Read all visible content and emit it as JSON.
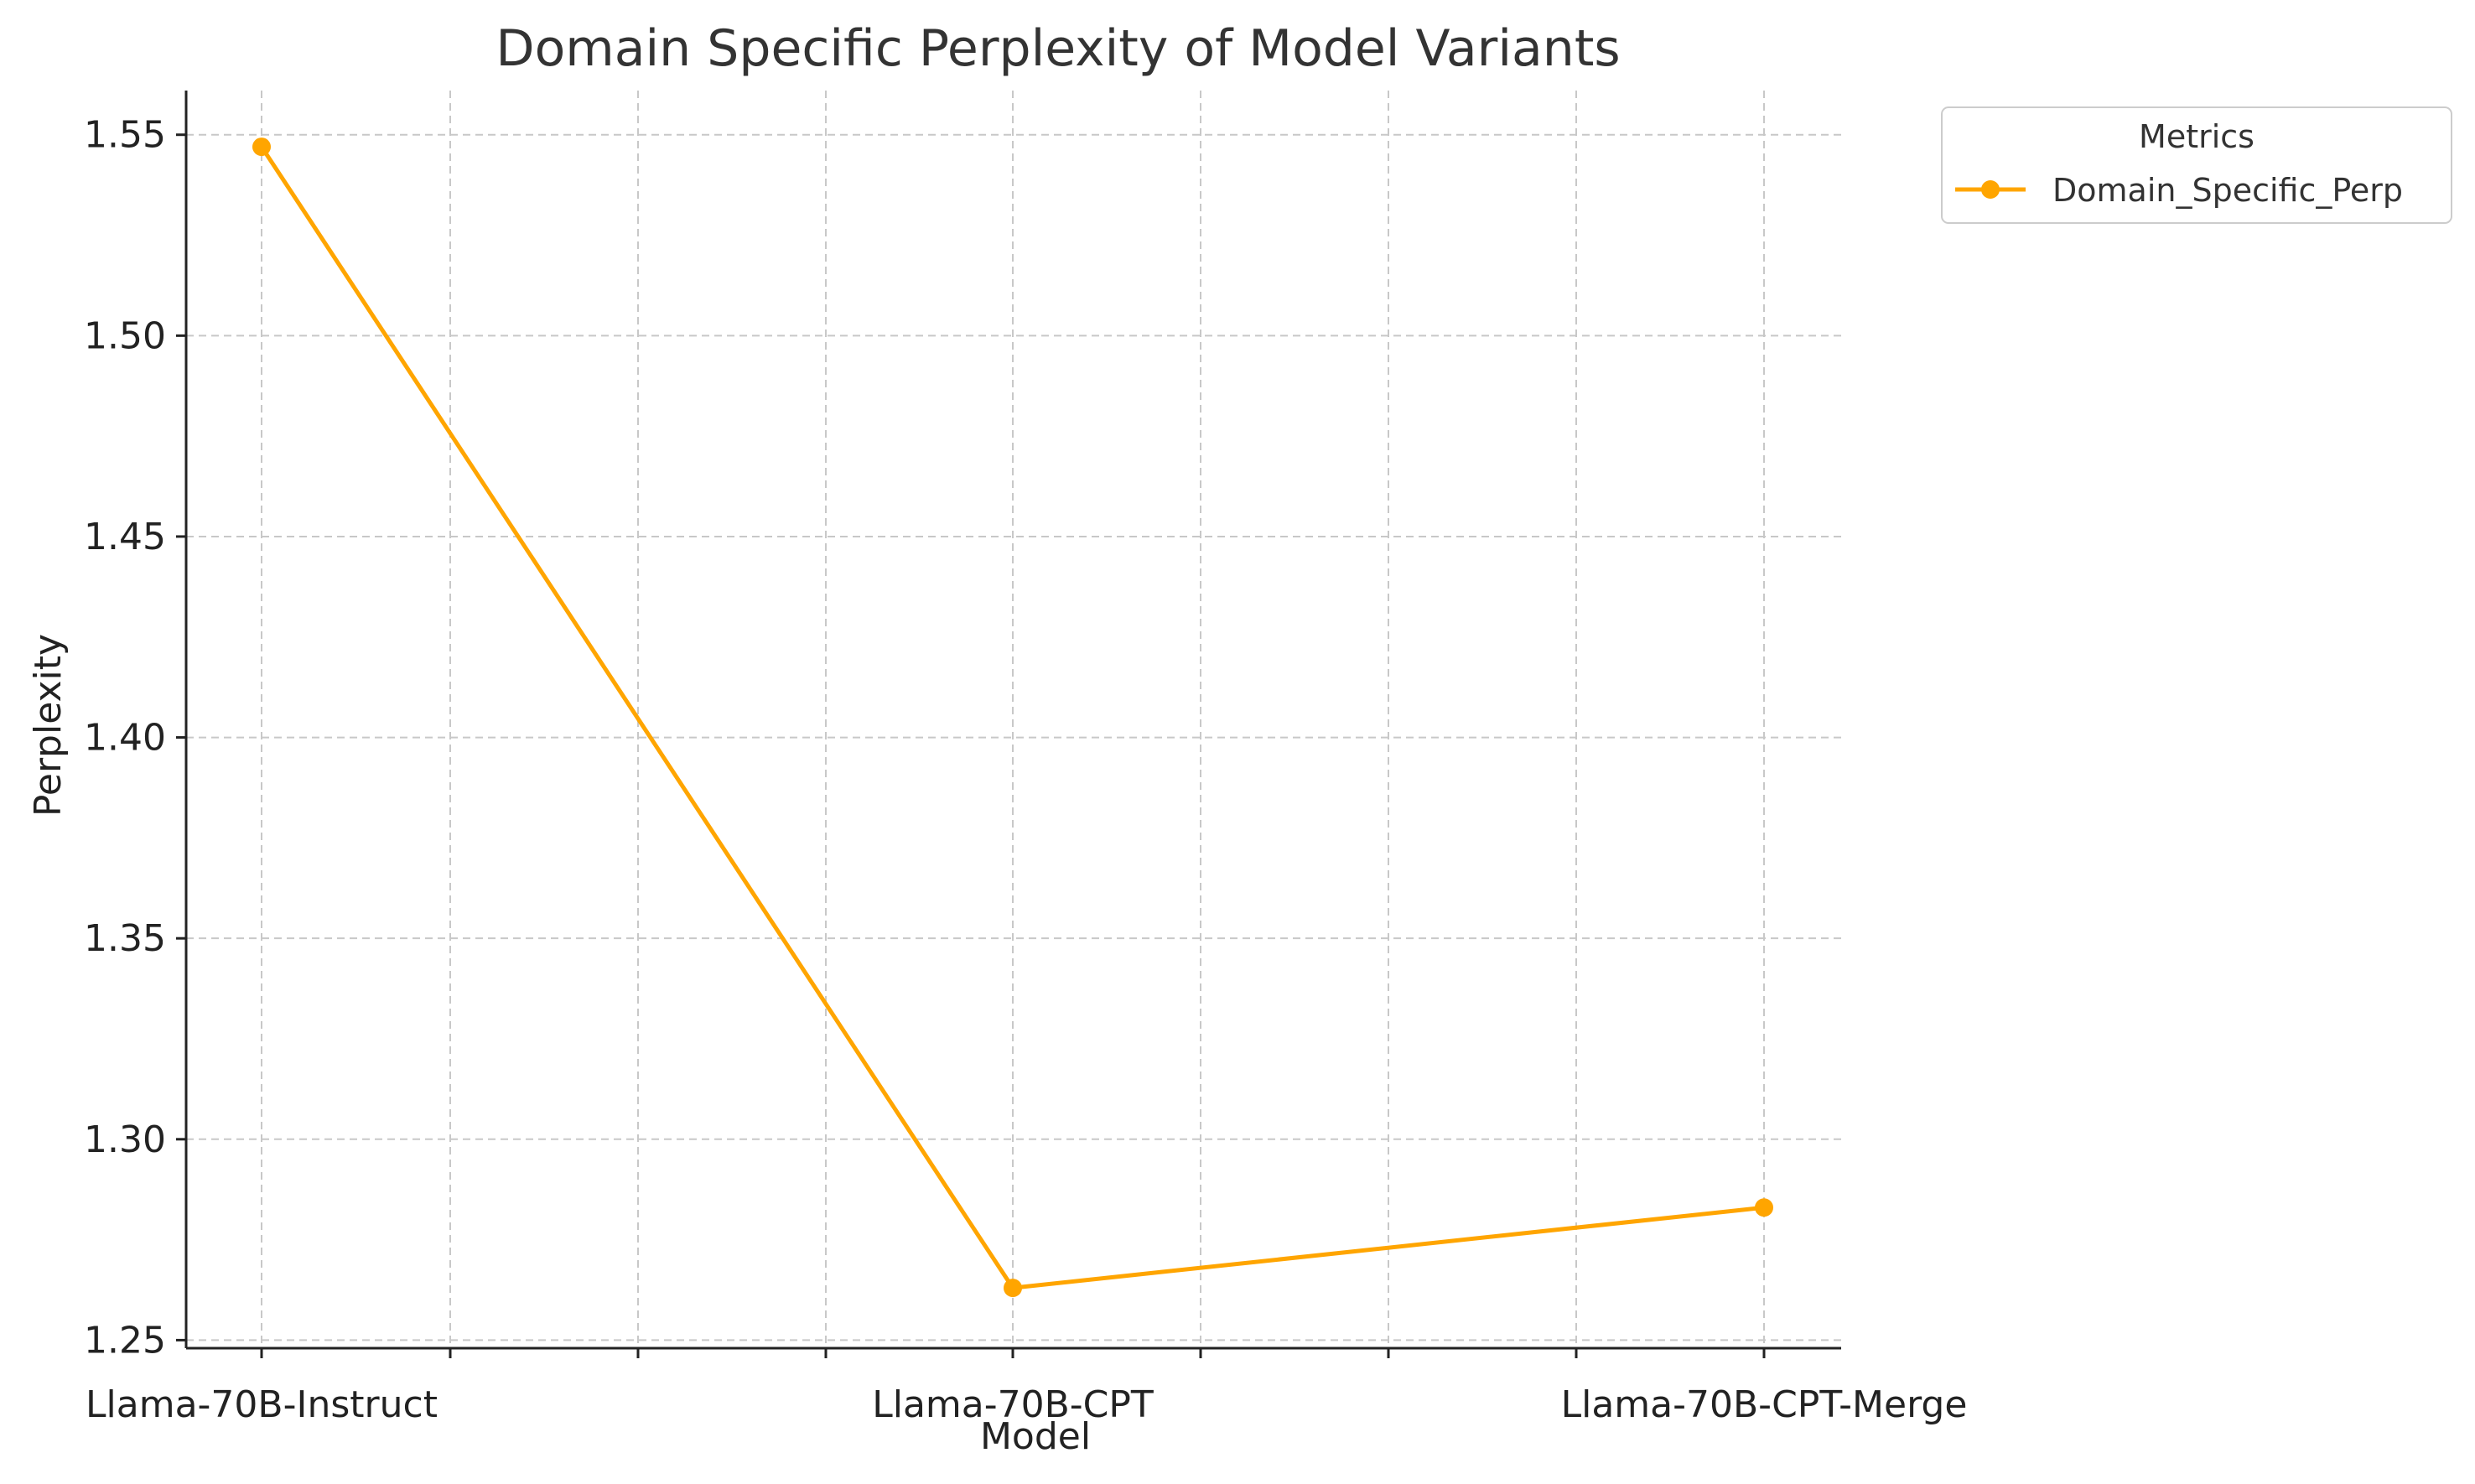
{
  "chart_data": {
    "type": "line",
    "title": "Domain Specific Perplexity of Model Variants",
    "xlabel": "Model",
    "ylabel": "Perplexity",
    "categories": [
      "Llama-70B-Instruct",
      "Llama-70B-CPT",
      "Llama-70B-CPT-Merge"
    ],
    "series": [
      {
        "name": "Domain_Specific_Perp",
        "values": [
          1.547,
          1.263,
          1.283
        ],
        "color": "#FFA500"
      }
    ],
    "ylim": [
      1.248,
      1.561
    ],
    "yticks": [
      "1.25",
      "1.30",
      "1.35",
      "1.40",
      "1.45",
      "1.50",
      "1.55"
    ],
    "grid": true,
    "grid_style": "dashed",
    "legend": {
      "title": "Metrics",
      "placement": "outside-top-right"
    }
  }
}
